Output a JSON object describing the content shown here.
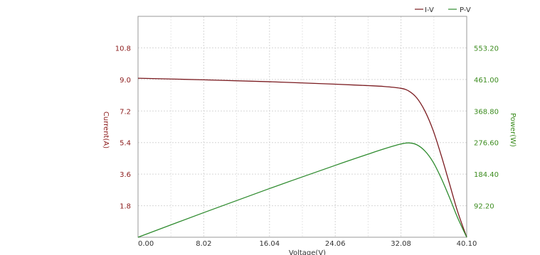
{
  "chart_data": {
    "type": "line",
    "title": "",
    "xlabel": "Voltage(V)",
    "ylabel": "Current(A)",
    "y2label": "Power(W)",
    "xlim": [
      0,
      40.1
    ],
    "ylim": [
      0,
      12.6
    ],
    "y2lim": [
      0,
      645.4
    ],
    "x_ticks": [
      "0.00",
      "8.02",
      "16.04",
      "24.06",
      "32.08",
      "40.10"
    ],
    "y_ticks": [
      "1.8",
      "3.6",
      "5.4",
      "7.2",
      "9.0",
      "10.8"
    ],
    "y2_ticks": [
      "92.20",
      "184.40",
      "276.60",
      "368.80",
      "461.00",
      "553.20"
    ],
    "grid": true,
    "legend_position": "top-right",
    "colors": {
      "iv": "#7a1a1f",
      "pv": "#2e8b2e",
      "axis": "#999999",
      "grid": "#d6d6d6",
      "left_tick": "#8b1a1a",
      "right_tick": "#3c8c1f",
      "x_tick": "#333333"
    },
    "series": [
      {
        "name": "I-V",
        "axis": "left",
        "x": [
          0,
          8.02,
          16.04,
          24.06,
          28,
          30,
          32,
          33,
          34,
          35,
          36,
          37,
          38,
          39,
          40.1
        ],
        "y": [
          9.07,
          8.98,
          8.87,
          8.73,
          8.65,
          8.6,
          8.5,
          8.35,
          7.95,
          7.2,
          6.1,
          4.65,
          3.05,
          1.45,
          0
        ]
      },
      {
        "name": "P-V",
        "axis": "right",
        "x": [
          0,
          8.02,
          16.04,
          24.06,
          28,
          30,
          32,
          33,
          34,
          35,
          36,
          37,
          38,
          39,
          40.1
        ],
        "y": [
          0,
          72,
          142.3,
          210,
          242.2,
          258,
          272,
          275.6,
          270.3,
          252,
          219.6,
          172,
          115.9,
          56.6,
          0
        ]
      }
    ]
  }
}
